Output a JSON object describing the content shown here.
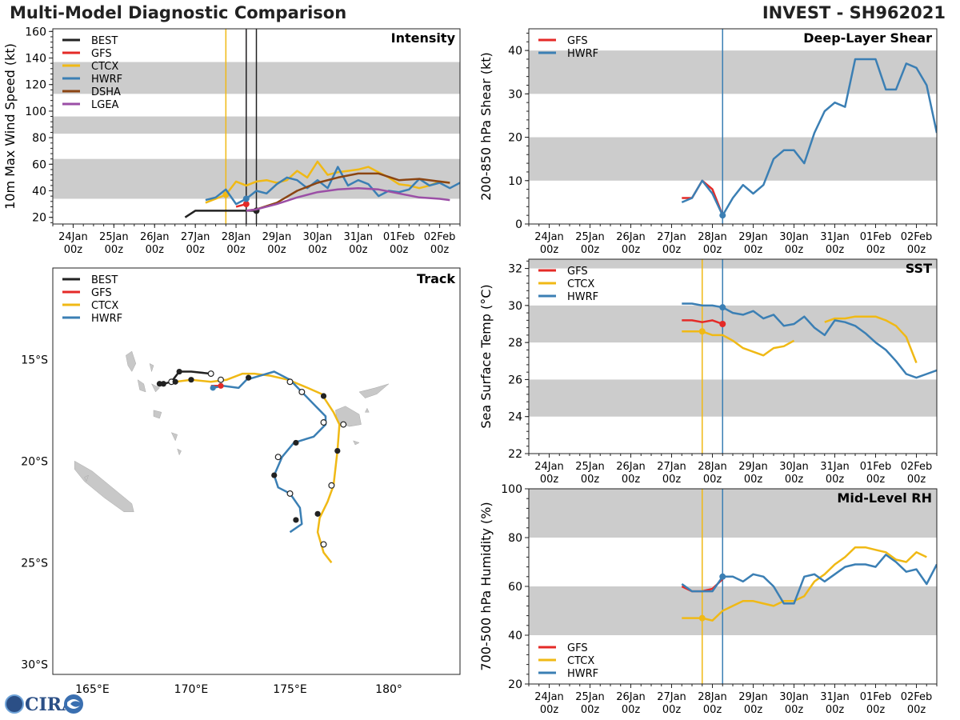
{
  "header": {
    "title": "Multi-Model Diagnostic Comparison",
    "storm": "INVEST - SH962021"
  },
  "logo_text": "CIRA",
  "colors": {
    "BEST": "#222222",
    "GFS": "#e42a27",
    "CTCX": "#f0b915",
    "HWRF": "#3b7fb4",
    "DSHA": "#8b4513",
    "LGEA": "#9b4fa6",
    "shade": "#cccccc",
    "land": "#c8c8c8"
  },
  "time_axis": {
    "ticks": [
      "24Jan\n00z",
      "25Jan\n00z",
      "26Jan\n00z",
      "27Jan\n00z",
      "28Jan\n00z",
      "29Jan\n00z",
      "30Jan\n00z",
      "31Jan\n00z",
      "01Feb\n00z",
      "02Feb\n00z"
    ],
    "range_days": [
      -0.5,
      9.5
    ]
  },
  "chart_data": [
    {
      "id": "intensity",
      "type": "line",
      "title": "Intensity",
      "ylabel": "10m Max Wind Speed (kt)",
      "ylim": [
        15,
        162
      ],
      "yticks": [
        20,
        40,
        60,
        80,
        100,
        120,
        140,
        160
      ],
      "shaded_bands": [
        [
          34,
          64
        ],
        [
          83,
          96
        ],
        [
          113,
          137
        ]
      ],
      "legend": [
        "BEST",
        "GFS",
        "CTCX",
        "HWRF",
        "DSHA",
        "LGEA"
      ],
      "vlines": [
        {
          "x": 3.75,
          "series": "CTCX"
        },
        {
          "x": 4.25,
          "series": "LGEA"
        },
        {
          "x": 4.25,
          "series": "BEST"
        },
        {
          "x": 4.5,
          "series": "BEST"
        }
      ],
      "series": [
        {
          "name": "BEST",
          "x": [
            2.75,
            3.0,
            3.25,
            3.5,
            3.75,
            4.0,
            4.25,
            4.5
          ],
          "y": [
            20,
            25,
            25,
            25,
            25,
            25,
            25,
            25
          ],
          "markers": [
            {
              "x": 4.5,
              "y": 25
            }
          ]
        },
        {
          "name": "GFS",
          "x": [
            4.0,
            4.25
          ],
          "y": [
            28,
            30
          ],
          "markers": [
            {
              "x": 4.25,
              "y": 30
            }
          ]
        },
        {
          "name": "CTCX",
          "x": [
            3.25,
            3.5,
            3.75,
            4.0,
            4.25,
            4.5,
            4.75,
            5.0,
            5.25,
            5.5,
            5.75,
            6.0,
            6.25,
            6.5,
            6.75,
            7.0,
            7.25,
            7.5,
            7.75,
            8.0,
            8.25,
            8.5,
            8.75,
            9.0,
            9.25
          ],
          "y": [
            31,
            34,
            37,
            47,
            44,
            47,
            48,
            46,
            48,
            55,
            50,
            62,
            52,
            54,
            55,
            56,
            58,
            54,
            50,
            45,
            44,
            42,
            44,
            47,
            46
          ],
          "markers": [
            {
              "x": 3.75,
              "y": 37
            }
          ]
        },
        {
          "name": "HWRF",
          "x": [
            3.25,
            3.5,
            3.75,
            4.0,
            4.25,
            4.5,
            4.75,
            5.0,
            5.25,
            5.5,
            5.75,
            6.0,
            6.25,
            6.5,
            6.75,
            7.0,
            7.25,
            7.5,
            7.75,
            8.0,
            8.25,
            8.5,
            8.75,
            9.0,
            9.25,
            9.5
          ],
          "y": [
            33,
            35,
            41,
            30,
            34,
            40,
            38,
            45,
            50,
            48,
            42,
            48,
            42,
            58,
            44,
            48,
            45,
            36,
            40,
            39,
            41,
            49,
            44,
            46,
            42,
            46
          ],
          "markers": [
            {
              "x": 4.25,
              "y": 34
            }
          ]
        },
        {
          "name": "DSHA",
          "x": [
            4.25,
            4.5,
            5.0,
            5.5,
            6.0,
            6.5,
            7.0,
            7.5,
            8.0,
            8.5,
            9.0,
            9.25
          ],
          "y": [
            25,
            26,
            31,
            40,
            46,
            50,
            53,
            53,
            48,
            49,
            47,
            46
          ]
        },
        {
          "name": "LGEA",
          "x": [
            4.25,
            4.5,
            5.0,
            5.5,
            6.0,
            6.5,
            7.0,
            7.5,
            8.0,
            8.5,
            9.0,
            9.25
          ],
          "y": [
            25,
            26,
            30,
            35,
            39,
            41,
            42,
            41,
            38,
            35,
            34,
            33
          ]
        }
      ]
    },
    {
      "id": "shear",
      "type": "line",
      "title": "Deep-Layer Shear",
      "ylabel": "200-850 hPa Shear (kt)",
      "ylim": [
        0,
        45
      ],
      "yticks": [
        0,
        10,
        20,
        30,
        40
      ],
      "shaded_bands": [
        [
          10,
          20
        ],
        [
          30,
          40
        ]
      ],
      "legend": [
        "GFS",
        "HWRF"
      ],
      "vlines": [
        {
          "x": 4.25,
          "series": "HWRF"
        }
      ],
      "series": [
        {
          "name": "GFS",
          "x": [
            3.25,
            3.5,
            3.75,
            4.0,
            4.25
          ],
          "y": [
            6,
            6,
            10,
            8,
            2
          ]
        },
        {
          "name": "HWRF",
          "x": [
            3.25,
            3.5,
            3.75,
            4.0,
            4.25,
            4.5,
            4.75,
            5.0,
            5.25,
            5.5,
            5.75,
            6.0,
            6.25,
            6.5,
            6.75,
            7.0,
            7.25,
            7.5,
            7.75,
            8.0,
            8.25,
            8.5,
            8.75,
            9.0,
            9.25,
            9.5
          ],
          "y": [
            5,
            6,
            10,
            7,
            2,
            6,
            9,
            7,
            9,
            15,
            17,
            17,
            14,
            21,
            26,
            28,
            27,
            38,
            38,
            38,
            31,
            31,
            37,
            36,
            32,
            21
          ],
          "markers": [
            {
              "x": 4.25,
              "y": 2
            }
          ]
        }
      ]
    },
    {
      "id": "sst",
      "type": "line",
      "title": "SST",
      "ylabel": "Sea Surface Temp (°C)",
      "ylim": [
        22,
        32.5
      ],
      "yticks": [
        22,
        24,
        26,
        28,
        30,
        32
      ],
      "shaded_bands": [
        [
          24,
          26
        ],
        [
          28,
          30
        ],
        [
          32,
          33
        ]
      ],
      "legend": [
        "GFS",
        "CTCX",
        "HWRF"
      ],
      "vlines": [
        {
          "x": 3.75,
          "series": "CTCX"
        },
        {
          "x": 4.25,
          "series": "HWRF"
        }
      ],
      "series": [
        {
          "name": "GFS",
          "x": [
            3.25,
            3.5,
            3.75,
            4.0,
            4.25
          ],
          "y": [
            29.2,
            29.2,
            29.1,
            29.2,
            29.0
          ],
          "markers": [
            {
              "x": 4.25,
              "y": 29.0
            }
          ]
        },
        {
          "name": "CTCX",
          "segments": [
            {
              "x": [
                3.25,
                3.5,
                3.75,
                4.0,
                4.25,
                4.5,
                4.75,
                5.0,
                5.25,
                5.5,
                5.75,
                6.0
              ],
              "y": [
                28.6,
                28.6,
                28.6,
                28.4,
                28.4,
                28.1,
                27.7,
                27.5,
                27.3,
                27.7,
                27.8,
                28.1
              ]
            },
            {
              "x": [
                6.75,
                7.0,
                7.25,
                7.5,
                7.75,
                8.0,
                8.25,
                8.5,
                8.75,
                9.0
              ],
              "y": [
                29.1,
                29.3,
                29.3,
                29.4,
                29.4,
                29.4,
                29.2,
                28.9,
                28.3,
                26.9
              ]
            }
          ],
          "markers": [
            {
              "x": 3.75,
              "y": 28.6
            }
          ]
        },
        {
          "name": "HWRF",
          "x": [
            3.25,
            3.5,
            3.75,
            4.0,
            4.25,
            4.5,
            4.75,
            5.0,
            5.25,
            5.5,
            5.75,
            6.0,
            6.25,
            6.5,
            6.75,
            7.0,
            7.25,
            7.5,
            7.75,
            8.0,
            8.25,
            8.5,
            8.75,
            9.0,
            9.25,
            9.5
          ],
          "y": [
            30.1,
            30.1,
            30.0,
            30.0,
            29.9,
            29.6,
            29.5,
            29.7,
            29.3,
            29.5,
            28.9,
            29.0,
            29.4,
            28.8,
            28.4,
            29.2,
            29.1,
            28.9,
            28.5,
            28.0,
            27.6,
            27.0,
            26.3,
            26.1,
            26.3,
            26.5
          ],
          "markers": [
            {
              "x": 4.25,
              "y": 29.9
            }
          ]
        }
      ]
    },
    {
      "id": "rh",
      "type": "line",
      "title": "Mid-Level RH",
      "ylabel": "700-500 hPa Humidity (%)",
      "ylim": [
        20,
        100
      ],
      "yticks": [
        20,
        40,
        60,
        80,
        100
      ],
      "shaded_bands": [
        [
          40,
          60
        ],
        [
          80,
          100
        ]
      ],
      "legend": [
        "GFS",
        "CTCX",
        "HWRF"
      ],
      "vlines": [
        {
          "x": 3.75,
          "series": "CTCX"
        },
        {
          "x": 4.25,
          "series": "HWRF"
        }
      ],
      "series": [
        {
          "name": "GFS",
          "x": [
            3.25,
            3.5,
            3.75,
            4.0,
            4.25
          ],
          "y": [
            60,
            58,
            58,
            59,
            63
          ]
        },
        {
          "name": "CTCX",
          "x": [
            3.25,
            3.5,
            3.75,
            4.0,
            4.25,
            4.5,
            4.75,
            5.0,
            5.25,
            5.5,
            5.75,
            6.0,
            6.25,
            6.5,
            6.75,
            7.0,
            7.25,
            7.5,
            7.75,
            8.0,
            8.25,
            8.5,
            8.75,
            9.0,
            9.25
          ],
          "y": [
            47,
            47,
            47,
            46,
            50,
            52,
            54,
            54,
            53,
            52,
            54,
            54,
            56,
            62,
            65,
            69,
            72,
            76,
            76,
            75,
            74,
            71,
            70,
            74,
            72
          ],
          "markers": [
            {
              "x": 3.75,
              "y": 47
            }
          ]
        },
        {
          "name": "HWRF",
          "x": [
            3.25,
            3.5,
            3.75,
            4.0,
            4.25,
            4.5,
            4.75,
            5.0,
            5.25,
            5.5,
            5.75,
            6.0,
            6.25,
            6.5,
            6.75,
            7.0,
            7.25,
            7.5,
            7.75,
            8.0,
            8.25,
            8.5,
            8.75,
            9.0,
            9.25,
            9.5
          ],
          "y": [
            61,
            58,
            58,
            58,
            64,
            64,
            62,
            65,
            64,
            60,
            53,
            53,
            64,
            65,
            62,
            65,
            68,
            69,
            69,
            68,
            73,
            70,
            66,
            67,
            61,
            69
          ],
          "markers": [
            {
              "x": 4.25,
              "y": 64
            }
          ]
        }
      ]
    },
    {
      "id": "track",
      "type": "scatter",
      "title": "Track",
      "xlim": [
        163,
        183.6
      ],
      "ylim": [
        -30.5,
        -10.5
      ],
      "xticks": [
        {
          "v": 165,
          "label": "165°E"
        },
        {
          "v": 170,
          "label": "170°E"
        },
        {
          "v": 175,
          "label": "175°E"
        },
        {
          "v": 180,
          "label": "180°"
        }
      ],
      "yticks": [
        {
          "v": -15,
          "label": "15°S"
        },
        {
          "v": -20,
          "label": "20°S"
        },
        {
          "v": -25,
          "label": "25°S"
        },
        {
          "v": -30,
          "label": "30°S"
        }
      ],
      "legend": [
        "BEST",
        "GFS",
        "CTCX",
        "HWRF"
      ],
      "series": [
        {
          "name": "BEST",
          "lon": [
            168.4,
            168.6,
            169.0,
            169.4,
            170.0,
            171.0
          ],
          "lat": [
            -16.2,
            -16.2,
            -16.1,
            -15.6,
            -15.6,
            -15.7
          ],
          "filled": [
            [
              168.4,
              -16.2
            ],
            [
              168.6,
              -16.2
            ],
            [
              169.4,
              -15.6
            ]
          ],
          "open": [
            [
              169.0,
              -16.1
            ],
            [
              171.0,
              -15.7
            ]
          ]
        },
        {
          "name": "GFS",
          "lon": [
            171.0,
            171.5
          ],
          "lat": [
            -16.3,
            -16.3
          ],
          "filled": [
            [
              171.5,
              -16.3
            ]
          ],
          "open": []
        },
        {
          "name": "CTCX",
          "lon": [
            169.2,
            170.0,
            171.0,
            171.8,
            172.6,
            173.2,
            174.0,
            174.9,
            175.9,
            176.6,
            177.2,
            177.5,
            177.4,
            177.2,
            176.9,
            176.5,
            176.4,
            176.7,
            177.1
          ],
          "lat": [
            -16.1,
            -16.0,
            -16.1,
            -16.0,
            -15.7,
            -15.7,
            -15.8,
            -16.0,
            -16.4,
            -16.7,
            -17.6,
            -18.2,
            -19.5,
            -21.2,
            -22.0,
            -22.8,
            -23.5,
            -24.5,
            -25.0
          ],
          "filled": [
            [
              169.2,
              -16.1
            ],
            [
              170.0,
              -16.0
            ],
            [
              176.7,
              -16.8
            ],
            [
              177.4,
              -19.5
            ],
            [
              176.4,
              -22.6
            ]
          ],
          "open": [
            [
              171.5,
              -16.0
            ],
            [
              175.6,
              -16.6
            ],
            [
              177.7,
              -18.2
            ],
            [
              177.1,
              -21.2
            ],
            [
              176.7,
              -24.1
            ]
          ]
        },
        {
          "name": "HWRF",
          "lon": [
            171.1,
            171.6,
            172.4,
            172.8,
            173.5,
            174.2,
            175.0,
            175.7,
            176.3,
            176.8,
            176.8,
            176.2,
            175.2,
            174.6,
            174.2,
            174.4,
            175.0,
            175.5,
            175.6,
            175.0
          ],
          "lat": [
            -16.4,
            -16.3,
            -16.4,
            -16.0,
            -15.8,
            -15.6,
            -16.0,
            -16.7,
            -17.3,
            -17.8,
            -18.2,
            -18.8,
            -19.1,
            -19.8,
            -20.7,
            -21.3,
            -21.6,
            -22.3,
            -23.1,
            -23.5
          ],
          "filled": [
            [
              171.1,
              -16.4
            ],
            [
              172.9,
              -15.9
            ],
            [
              175.3,
              -19.1
            ],
            [
              174.2,
              -20.7
            ],
            [
              175.3,
              -22.9
            ]
          ],
          "open": [
            [
              175.0,
              -16.1
            ],
            [
              176.7,
              -18.1
            ],
            [
              174.4,
              -19.8
            ],
            [
              175.0,
              -21.6
            ]
          ]
        }
      ]
    }
  ]
}
